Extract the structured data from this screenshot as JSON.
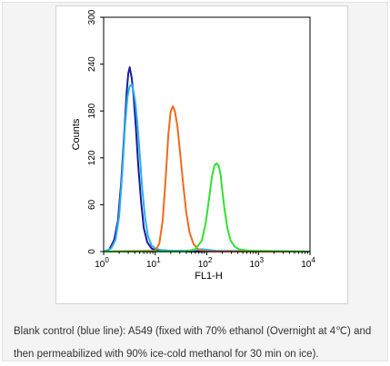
{
  "chart_data": {
    "type": "line",
    "title": "",
    "xlabel": "FL1-H",
    "ylabel": "Counts",
    "x_scale": "log",
    "xlim": [
      1,
      10000
    ],
    "ylim": [
      0,
      300
    ],
    "grid": false,
    "x_ticks": [
      {
        "value": 1,
        "base": "10",
        "exp": "0"
      },
      {
        "value": 10,
        "base": "10",
        "exp": "1"
      },
      {
        "value": 100,
        "base": "10",
        "exp": "2"
      },
      {
        "value": 1000,
        "base": "10",
        "exp": "3"
      },
      {
        "value": 10000,
        "base": "10",
        "exp": "4"
      }
    ],
    "y_ticks": [
      "0",
      "60",
      "120",
      "180",
      "240",
      "300"
    ],
    "series": [
      {
        "color": "#1a1aa0",
        "x": [
          1,
          1.3,
          1.6,
          1.9,
          2.2,
          2.5,
          2.8,
          3.0,
          3.2,
          3.5,
          3.8,
          4.2,
          4.7,
          5.3,
          6.0,
          7.0,
          8.5,
          10,
          13,
          20,
          100,
          10000
        ],
        "y": [
          0,
          3,
          15,
          40,
          90,
          150,
          205,
          228,
          236,
          222,
          200,
          160,
          110,
          65,
          30,
          12,
          4,
          2,
          1,
          0,
          0,
          0
        ]
      },
      {
        "color": "#2cb0ea",
        "x": [
          1,
          1.4,
          1.7,
          2.0,
          2.3,
          2.6,
          2.9,
          3.2,
          3.5,
          3.8,
          4.1,
          4.5,
          5.0,
          5.6,
          6.3,
          7.2,
          8.5,
          10,
          13,
          20,
          40,
          60,
          80,
          110,
          150,
          10000
        ],
        "y": [
          0,
          4,
          15,
          45,
          100,
          160,
          198,
          212,
          214,
          205,
          192,
          165,
          125,
          80,
          45,
          20,
          8,
          4,
          2,
          1,
          1,
          2,
          3,
          2,
          1,
          0
        ]
      },
      {
        "color": "#f06a1c",
        "x": [
          1,
          10,
          12,
          14,
          16,
          18,
          20,
          22,
          24,
          27,
          30,
          35,
          40,
          46,
          55,
          65,
          80,
          100,
          10000
        ],
        "y": [
          0,
          1,
          10,
          40,
          95,
          150,
          180,
          186,
          180,
          160,
          130,
          85,
          50,
          25,
          10,
          4,
          1,
          0,
          0
        ]
      },
      {
        "color": "#33e033",
        "x": [
          1,
          40,
          60,
          80,
          95,
          110,
          125,
          140,
          155,
          170,
          185,
          200,
          220,
          250,
          290,
          350,
          420,
          520,
          700,
          10000
        ],
        "y": [
          0,
          0,
          3,
          14,
          36,
          66,
          95,
          110,
          113,
          110,
          98,
          78,
          55,
          30,
          14,
          6,
          3,
          2,
          1,
          0
        ]
      }
    ]
  },
  "caption": {
    "text": "Blank control (blue line): A549 (fixed with 70% ethanol (Overnight at 4℃) and then permeabilized with 90% ice-cold methanol for 30 min on ice)."
  }
}
